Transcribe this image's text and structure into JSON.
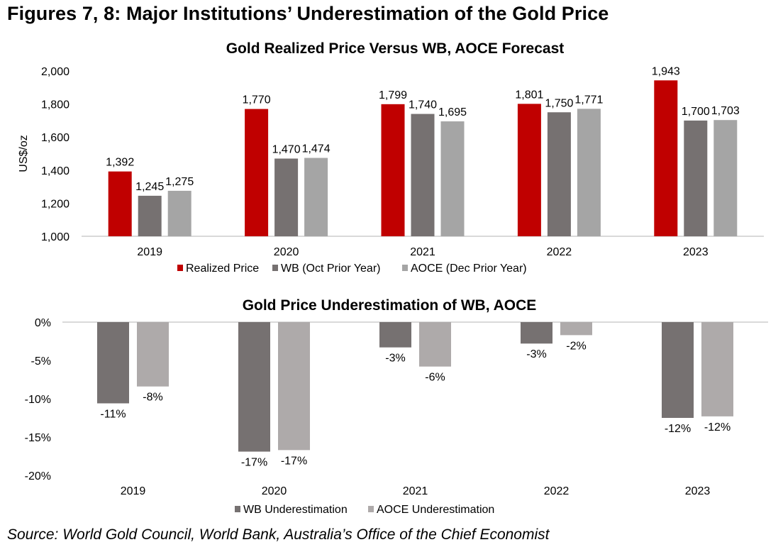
{
  "figure_title": "Figures 7, 8: Major Institutions’ Underestimation of the Gold Price",
  "source": "Source: World Gold Council, World Bank, Australia’s Office of the Chief Economist",
  "chart_data": [
    {
      "type": "bar",
      "title": "Gold Realized Price Versus WB, AOCE Forecast",
      "xlabel": "",
      "ylabel": "US$/oz",
      "ylim": [
        1000,
        2000
      ],
      "yticks": [
        1000,
        1200,
        1400,
        1600,
        1800,
        2000
      ],
      "ytick_labels": [
        "1,000",
        "1,200",
        "1,400",
        "1,600",
        "1,800",
        "2,000"
      ],
      "grid": false,
      "legend_position": "bottom",
      "categories": [
        "2019",
        "2020",
        "2021",
        "2022",
        "2023"
      ],
      "series": [
        {
          "name": "Realized Price",
          "color": "#c00000",
          "values": [
            1392,
            1770,
            1799,
            1801,
            1943
          ],
          "labels": [
            "1,392",
            "1,770",
            "1,799",
            "1,801",
            "1,943"
          ]
        },
        {
          "name": "WB (Oct Prior Year)",
          "color": "#767171",
          "values": [
            1245,
            1470,
            1740,
            1750,
            1700
          ],
          "labels": [
            "1,245",
            "1,470",
            "1,740",
            "1,750",
            "1,700"
          ]
        },
        {
          "name": "AOCE (Dec Prior Year)",
          "color": "#a5a5a5",
          "values": [
            1275,
            1474,
            1695,
            1771,
            1703
          ],
          "labels": [
            "1,275",
            "1,474",
            "1,695",
            "1,771",
            "1,703"
          ]
        }
      ]
    },
    {
      "type": "bar",
      "title": "Gold Price Underestimation of WB, AOCE",
      "xlabel": "",
      "ylabel": "",
      "ylim": [
        -20,
        0
      ],
      "yticks": [
        0,
        -5,
        -10,
        -15,
        -20
      ],
      "ytick_labels": [
        "0%",
        "-5%",
        "-10%",
        "-15%",
        "-20%"
      ],
      "grid": false,
      "legend_position": "bottom",
      "categories": [
        "2019",
        "2020",
        "2021",
        "2022",
        "2023"
      ],
      "series": [
        {
          "name": "WB Underestimation",
          "color": "#767171",
          "values": [
            -10.6,
            -16.9,
            -3.3,
            -2.8,
            -12.5
          ],
          "labels": [
            "-11%",
            "-17%",
            "-3%",
            "-3%",
            "-12%"
          ]
        },
        {
          "name": "AOCE Underestimation",
          "color": "#aeaaaa",
          "values": [
            -8.4,
            -16.7,
            -5.8,
            -1.7,
            -12.3
          ],
          "labels": [
            "-8%",
            "-17%",
            "-6%",
            "-2%",
            "-12%"
          ]
        }
      ]
    }
  ]
}
